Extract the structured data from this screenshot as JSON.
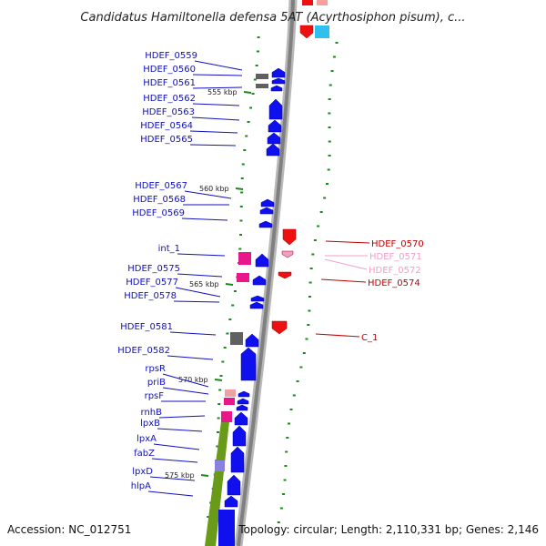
{
  "title": "Candidatus Hamiltonella defensa 5AT (Acyrthosiphon pisum), c...",
  "footer": {
    "accession": "Accession: NC_012751",
    "topology": "Topology: circular; Length: 2,110,331 bp; Genes: 2,146"
  },
  "colors": {
    "forward": "#1010ee",
    "reverse": "#ee1010",
    "reverse_light": "#f0a0c8",
    "rna": "#e8188a",
    "grey": "#606060",
    "olive": "#6a9a1a",
    "cyan": "#30c0f0",
    "dots": "#1a8a1a",
    "backbone": "#808080"
  },
  "ticks": [
    "555 kbp",
    "560 kbp",
    "565 kbp",
    "570 kbp",
    "575 kbp"
  ],
  "left_labels": [
    "HDEF_0559",
    "HDEF_0560",
    "HDEF_0561",
    "HDEF_0562",
    "HDEF_0563",
    "HDEF_0564",
    "HDEF_0565",
    "HDEF_0567",
    "HDEF_0568",
    "HDEF_0569",
    "int_1",
    "HDEF_0575",
    "HDEF_0577",
    "HDEF_0578",
    "HDEF_0581",
    "HDEF_0582",
    "rpsR",
    "priB",
    "rpsF",
    "rnhB",
    "lpxB",
    "lpxA",
    "fabZ",
    "lpxD",
    "hlpA"
  ],
  "right_labels": [
    "HDEF_0570",
    "HDEF_0571",
    "HDEF_0572",
    "HDEF_0574",
    "C_1"
  ]
}
